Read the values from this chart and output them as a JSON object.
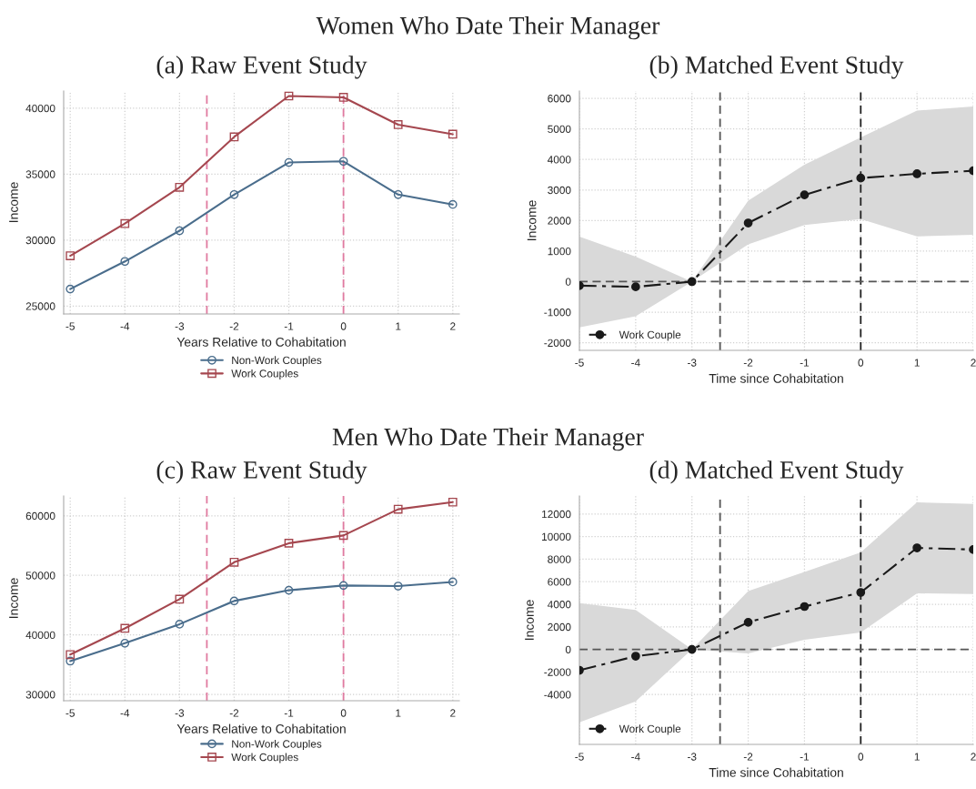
{
  "chart_data": [
    {
      "type": "line",
      "title": "(a) Raw Event Study",
      "annotations": [
        "Women Who Date Their Manager"
      ],
      "xlabel": "Years Relative to Cohabitation",
      "ylabel": "Income",
      "x": [
        -5,
        -4,
        -3,
        -2,
        -1,
        0,
        1,
        2
      ],
      "series": [
        {
          "name": "Non-Work Couples",
          "color": "#4a6d8c",
          "marker": "circle",
          "values": [
            26290,
            28380,
            30710,
            33450,
            35880,
            35970,
            33450,
            32700
          ]
        },
        {
          "name": "Work Couples",
          "color": "#a5474f",
          "marker": "square",
          "values": [
            28810,
            31250,
            34000,
            37820,
            40920,
            40820,
            38750,
            38030
          ]
        }
      ],
      "xlim": [
        -5.12,
        2.12
      ],
      "ylim": [
        24400,
        41300
      ],
      "xticks": [
        -5,
        -4,
        -3,
        -2,
        -1,
        0,
        1,
        2
      ],
      "yticks": [
        25000,
        30000,
        35000,
        40000
      ],
      "ref_lines": [
        {
          "axis": "x",
          "value": -2.5,
          "color": "#e07aa0",
          "line_style": "dashed"
        },
        {
          "axis": "x",
          "value": 0,
          "color": "#e07aa0",
          "line_style": "dashed"
        }
      ],
      "grid": true,
      "legend": "bottom",
      "line_style": "solid"
    },
    {
      "type": "line",
      "title": "(b) Matched Event Study",
      "xlabel": "Time since Cohabitation",
      "ylabel": "Income",
      "x": [
        -5,
        -4,
        -3,
        -2,
        -1,
        0,
        1,
        2
      ],
      "series": [
        {
          "name": "Work Couple",
          "color": "#1a1a1a",
          "marker": "circle",
          "values": [
            -130,
            -170,
            0,
            1920,
            2840,
            3390,
            3530,
            3630
          ],
          "lower": [
            -1500,
            -1130,
            0,
            1220,
            1850,
            2050,
            1480,
            1530
          ],
          "upper": [
            1470,
            820,
            0,
            2650,
            3830,
            4720,
            5600,
            5730
          ]
        }
      ],
      "xlim": [
        -5,
        2
      ],
      "ylim": [
        -2250,
        6240
      ],
      "xticks": [
        -5,
        -4,
        -3,
        -2,
        -1,
        0,
        1,
        2
      ],
      "yticks": [
        -2000,
        -1000,
        0,
        1000,
        2000,
        3000,
        4000,
        5000,
        6000
      ],
      "ref_lines": [
        {
          "axis": "x",
          "value": -2.5,
          "color": "#555555",
          "line_style": "dashed"
        },
        {
          "axis": "x",
          "value": 0,
          "color": "#222222",
          "line_style": "dashed"
        },
        {
          "axis": "y",
          "value": 0,
          "color": "#555555",
          "line_style": "dashed"
        }
      ],
      "grid": true,
      "legend": "bottom left",
      "line_style": "dashdot"
    },
    {
      "type": "line",
      "title": "(c) Raw Event Study",
      "annotations": [
        "Men Who Date Their Manager"
      ],
      "xlabel": "Years Relative to Cohabitation",
      "ylabel": "Income",
      "x": [
        -5,
        -4,
        -3,
        -2,
        -1,
        0,
        1,
        2
      ],
      "series": [
        {
          "name": "Non-Work Couples",
          "color": "#4a6d8c",
          "marker": "circle",
          "values": [
            35600,
            38600,
            41800,
            45700,
            47500,
            48300,
            48200,
            48900
          ]
        },
        {
          "name": "Work Couples",
          "color": "#a5474f",
          "marker": "square",
          "values": [
            36700,
            41100,
            46000,
            52200,
            55400,
            56700,
            61100,
            62300
          ]
        }
      ],
      "xlim": [
        -5.12,
        2.12
      ],
      "ylim": [
        28950,
        63330
      ],
      "xticks": [
        -5,
        -4,
        -3,
        -2,
        -1,
        0,
        1,
        2
      ],
      "yticks": [
        30000,
        40000,
        50000,
        60000
      ],
      "ref_lines": [
        {
          "axis": "x",
          "value": -2.5,
          "color": "#e07aa0",
          "line_style": "dashed"
        },
        {
          "axis": "x",
          "value": 0,
          "color": "#e07aa0",
          "line_style": "dashed"
        }
      ],
      "grid": true,
      "legend": "bottom",
      "line_style": "solid"
    },
    {
      "type": "line",
      "title": "(d) Matched Event Study",
      "xlabel": "Time since Cohabitation",
      "ylabel": "Income",
      "x": [
        -5,
        -4,
        -3,
        -2,
        -1,
        0,
        1,
        2
      ],
      "series": [
        {
          "name": "Work Couple",
          "color": "#1a1a1a",
          "marker": "circle",
          "values": [
            -1850,
            -600,
            0,
            2400,
            3800,
            5050,
            9000,
            8850
          ],
          "lower": [
            -6460,
            -4600,
            0,
            -350,
            850,
            1500,
            4970,
            4900
          ],
          "upper": [
            4100,
            3500,
            0,
            5170,
            6870,
            8600,
            13040,
            12900
          ]
        }
      ],
      "xlim": [
        -5,
        2
      ],
      "ylim": [
        -8420,
        13600
      ],
      "xticks": [
        -5,
        -4,
        -3,
        -2,
        -1,
        0,
        1,
        2
      ],
      "yticks": [
        -4000,
        -2000,
        0,
        2000,
        4000,
        6000,
        8000,
        10000,
        12000
      ],
      "ref_lines": [
        {
          "axis": "x",
          "value": -2.5,
          "color": "#555555",
          "line_style": "dashed"
        },
        {
          "axis": "x",
          "value": 0,
          "color": "#222222",
          "line_style": "dashed"
        },
        {
          "axis": "y",
          "value": 0,
          "color": "#555555",
          "line_style": "dashed"
        }
      ],
      "grid": true,
      "legend": "bottom left",
      "line_style": "dashdot"
    }
  ]
}
